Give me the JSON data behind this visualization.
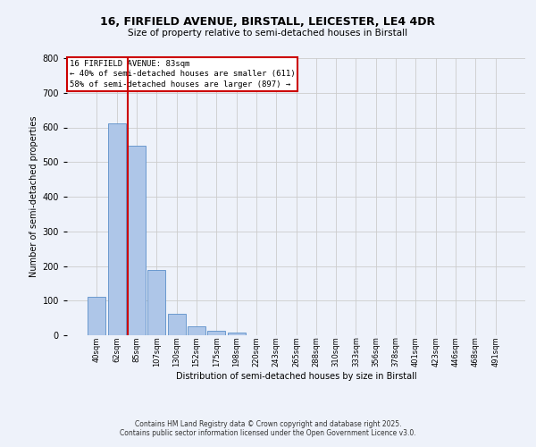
{
  "title_line1": "16, FIRFIELD AVENUE, BIRSTALL, LEICESTER, LE4 4DR",
  "title_line2": "Size of property relative to semi-detached houses in Birstall",
  "xlabel": "Distribution of semi-detached houses by size in Birstall",
  "ylabel": "Number of semi-detached properties",
  "bar_labels": [
    "40sqm",
    "62sqm",
    "85sqm",
    "107sqm",
    "130sqm",
    "152sqm",
    "175sqm",
    "198sqm",
    "220sqm",
    "243sqm",
    "265sqm",
    "288sqm",
    "310sqm",
    "333sqm",
    "356sqm",
    "378sqm",
    "401sqm",
    "423sqm",
    "446sqm",
    "468sqm",
    "491sqm"
  ],
  "bar_values": [
    110,
    611,
    548,
    188,
    62,
    25,
    12,
    7,
    0,
    0,
    0,
    0,
    0,
    0,
    0,
    0,
    0,
    0,
    0,
    0,
    0
  ],
  "bar_color": "#aec6e8",
  "bar_edge_color": "#5b8fc9",
  "property_line_x": 2,
  "property_sqm": 83,
  "annotation_title": "16 FIRFIELD AVENUE: 83sqm",
  "annotation_line2": "← 40% of semi-detached houses are smaller (611)",
  "annotation_line3": "58% of semi-detached houses are larger (897) →",
  "annotation_box_color": "#ffffff",
  "annotation_box_edge": "#cc0000",
  "vline_color": "#cc0000",
  "ylim": [
    0,
    800
  ],
  "yticks": [
    0,
    100,
    200,
    300,
    400,
    500,
    600,
    700,
    800
  ],
  "grid_color": "#cccccc",
  "background_color": "#eef2fa",
  "footer_line1": "Contains HM Land Registry data © Crown copyright and database right 2025.",
  "footer_line2": "Contains public sector information licensed under the Open Government Licence v3.0."
}
